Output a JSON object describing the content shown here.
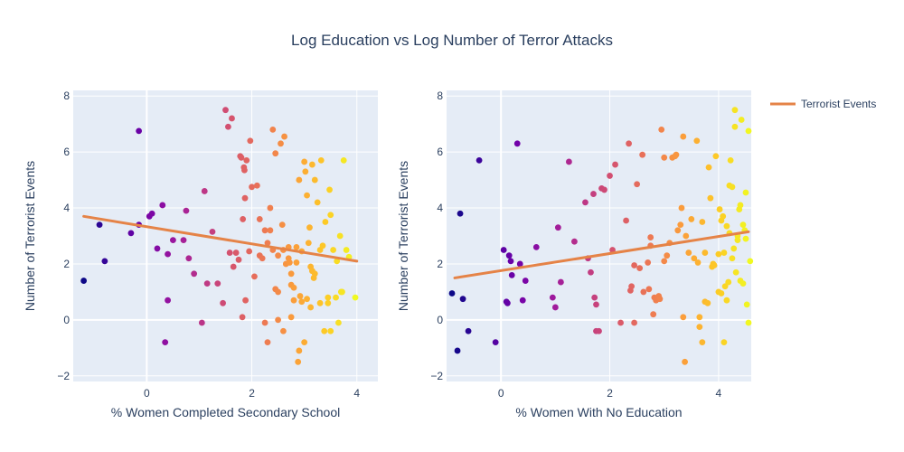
{
  "title": "Log Education vs Log Number of Terror Attacks",
  "legend": {
    "label": "Terrorist Events",
    "color": "#e58347",
    "placement": "top-right"
  },
  "colors": {
    "plot_background": "#e5ecf6",
    "grid": "#ffffff",
    "colorscale": [
      "#0d0887",
      "#46039f",
      "#7201a8",
      "#9c179e",
      "#bd3786",
      "#d8576b",
      "#ed7953",
      "#fb9f3a",
      "#fdca26",
      "#f0f921"
    ]
  },
  "chart_data": [
    {
      "type": "scatter",
      "xlabel": "% Women Completed Secondary School",
      "ylabel": "Number of Terrorist Events",
      "xlim": [
        -1.4,
        4.4
      ],
      "ylim": [
        -2.2,
        8.2
      ],
      "x_ticks": [
        0,
        2,
        4
      ],
      "y_ticks": [
        -2,
        0,
        2,
        4,
        6,
        8
      ],
      "grid": true,
      "trendline": {
        "name": "Terrorist Events",
        "x": [
          -1.2,
          4.0
        ],
        "y": [
          3.7,
          2.1
        ]
      },
      "points": [
        [
          -1.2,
          1.4
        ],
        [
          -0.9,
          3.4
        ],
        [
          -0.8,
          2.1
        ],
        [
          -0.3,
          3.1
        ],
        [
          -0.15,
          3.4
        ],
        [
          -0.15,
          6.75
        ],
        [
          0.05,
          3.7
        ],
        [
          0.1,
          3.8
        ],
        [
          0.2,
          2.55
        ],
        [
          0.3,
          4.1
        ],
        [
          0.35,
          -0.8
        ],
        [
          0.4,
          0.7
        ],
        [
          0.4,
          2.35
        ],
        [
          0.5,
          2.85
        ],
        [
          0.7,
          2.85
        ],
        [
          0.75,
          3.9
        ],
        [
          0.8,
          2.2
        ],
        [
          0.9,
          1.65
        ],
        [
          1.05,
          -0.1
        ],
        [
          1.1,
          4.6
        ],
        [
          1.15,
          1.3
        ],
        [
          1.25,
          3.15
        ],
        [
          1.35,
          1.3
        ],
        [
          1.45,
          0.6
        ],
        [
          1.5,
          7.5
        ],
        [
          1.55,
          6.9
        ],
        [
          1.58,
          2.4
        ],
        [
          1.62,
          7.2
        ],
        [
          1.65,
          1.9
        ],
        [
          1.7,
          2.4
        ],
        [
          1.75,
          2.15
        ],
        [
          1.78,
          5.85
        ],
        [
          1.8,
          5.8
        ],
        [
          1.82,
          0.1
        ],
        [
          1.83,
          3.6
        ],
        [
          1.85,
          5.45
        ],
        [
          1.86,
          5.35
        ],
        [
          1.87,
          4.35
        ],
        [
          1.88,
          0.7
        ],
        [
          1.9,
          5.7
        ],
        [
          1.95,
          2.45
        ],
        [
          1.97,
          6.4
        ],
        [
          2.0,
          4.75
        ],
        [
          2.05,
          1.55
        ],
        [
          2.1,
          4.8
        ],
        [
          2.15,
          2.3
        ],
        [
          2.15,
          3.6
        ],
        [
          2.2,
          2.2
        ],
        [
          2.25,
          3.2
        ],
        [
          2.25,
          -0.1
        ],
        [
          2.3,
          -0.8
        ],
        [
          2.3,
          2.75
        ],
        [
          2.35,
          4.0
        ],
        [
          2.35,
          3.2
        ],
        [
          2.4,
          2.5
        ],
        [
          2.4,
          6.8
        ],
        [
          2.45,
          5.95
        ],
        [
          2.45,
          1.1
        ],
        [
          2.5,
          0.0
        ],
        [
          2.5,
          1.0
        ],
        [
          2.5,
          2.3
        ],
        [
          2.55,
          6.3
        ],
        [
          2.58,
          3.4
        ],
        [
          2.6,
          2.5
        ],
        [
          2.6,
          -0.4
        ],
        [
          2.62,
          6.55
        ],
        [
          2.65,
          2.0
        ],
        [
          2.7,
          2.2
        ],
        [
          2.7,
          2.6
        ],
        [
          2.72,
          2.05
        ],
        [
          2.75,
          0.1
        ],
        [
          2.75,
          1.25
        ],
        [
          2.75,
          1.65
        ],
        [
          2.8,
          1.15
        ],
        [
          2.8,
          0.7
        ],
        [
          2.85,
          2.05
        ],
        [
          2.85,
          2.6
        ],
        [
          2.88,
          -1.5
        ],
        [
          2.9,
          -1.1
        ],
        [
          2.9,
          5.0
        ],
        [
          2.92,
          0.85
        ],
        [
          2.95,
          2.45
        ],
        [
          2.95,
          0.65
        ],
        [
          3.0,
          -0.8
        ],
        [
          3.0,
          5.65
        ],
        [
          3.02,
          5.3
        ],
        [
          3.05,
          0.75
        ],
        [
          3.05,
          4.45
        ],
        [
          3.08,
          2.75
        ],
        [
          3.1,
          3.3
        ],
        [
          3.12,
          1.9
        ],
        [
          3.12,
          0.45
        ],
        [
          3.15,
          1.75
        ],
        [
          3.15,
          5.55
        ],
        [
          3.18,
          1.5
        ],
        [
          3.2,
          1.65
        ],
        [
          3.2,
          5.0
        ],
        [
          3.25,
          4.2
        ],
        [
          3.3,
          0.6
        ],
        [
          3.3,
          2.5
        ],
        [
          3.32,
          5.7
        ],
        [
          3.35,
          2.65
        ],
        [
          3.38,
          -0.4
        ],
        [
          3.4,
          3.5
        ],
        [
          3.45,
          0.8
        ],
        [
          3.45,
          0.6
        ],
        [
          3.48,
          4.65
        ],
        [
          3.5,
          3.75
        ],
        [
          3.5,
          -0.4
        ],
        [
          3.55,
          2.5
        ],
        [
          3.6,
          0.8
        ],
        [
          3.62,
          2.1
        ],
        [
          3.65,
          -0.1
        ],
        [
          3.68,
          3.0
        ],
        [
          3.7,
          1.0
        ],
        [
          3.72,
          1.0
        ],
        [
          3.75,
          5.7
        ],
        [
          3.8,
          2.5
        ],
        [
          3.85,
          2.25
        ],
        [
          3.97,
          0.8
        ]
      ]
    },
    {
      "type": "scatter",
      "xlabel": "% Women With No Education",
      "ylabel": "Number of Terrorist Events",
      "xlim": [
        -1.0,
        4.6
      ],
      "ylim": [
        -2.2,
        8.2
      ],
      "x_ticks": [
        0,
        2,
        4
      ],
      "y_ticks": [
        -2,
        0,
        2,
        4,
        6,
        8
      ],
      "grid": true,
      "trendline": {
        "name": "Terrorist Events",
        "x": [
          -0.85,
          4.55
        ],
        "y": [
          1.5,
          3.15
        ]
      },
      "points": [
        [
          -0.9,
          0.95
        ],
        [
          -0.8,
          -1.1
        ],
        [
          -0.75,
          3.8
        ],
        [
          -0.7,
          0.75
        ],
        [
          -0.6,
          -0.4
        ],
        [
          -0.4,
          5.7
        ],
        [
          -0.1,
          -0.8
        ],
        [
          0.05,
          2.5
        ],
        [
          0.1,
          0.65
        ],
        [
          0.12,
          0.6
        ],
        [
          0.15,
          2.3
        ],
        [
          0.18,
          2.1
        ],
        [
          0.2,
          1.6
        ],
        [
          0.3,
          6.3
        ],
        [
          0.35,
          2.0
        ],
        [
          0.4,
          0.7
        ],
        [
          0.45,
          1.4
        ],
        [
          0.65,
          2.6
        ],
        [
          0.95,
          0.8
        ],
        [
          1.0,
          0.45
        ],
        [
          1.05,
          3.3
        ],
        [
          1.1,
          1.35
        ],
        [
          1.25,
          5.65
        ],
        [
          1.35,
          2.8
        ],
        [
          1.55,
          4.2
        ],
        [
          1.6,
          2.2
        ],
        [
          1.65,
          1.7
        ],
        [
          1.7,
          4.5
        ],
        [
          1.72,
          0.8
        ],
        [
          1.75,
          0.55
        ],
        [
          1.75,
          -0.4
        ],
        [
          1.8,
          -0.4
        ],
        [
          1.85,
          4.7
        ],
        [
          1.9,
          4.65
        ],
        [
          2.0,
          5.15
        ],
        [
          2.05,
          2.5
        ],
        [
          2.1,
          5.55
        ],
        [
          2.2,
          -0.1
        ],
        [
          2.3,
          3.55
        ],
        [
          2.35,
          6.3
        ],
        [
          2.38,
          1.05
        ],
        [
          2.4,
          1.2
        ],
        [
          2.45,
          -0.1
        ],
        [
          2.45,
          1.95
        ],
        [
          2.5,
          4.85
        ],
        [
          2.55,
          1.85
        ],
        [
          2.6,
          5.9
        ],
        [
          2.62,
          1.0
        ],
        [
          2.7,
          2.05
        ],
        [
          2.72,
          1.1
        ],
        [
          2.75,
          2.65
        ],
        [
          2.75,
          2.95
        ],
        [
          2.8,
          0.2
        ],
        [
          2.82,
          0.8
        ],
        [
          2.85,
          0.7
        ],
        [
          2.9,
          0.85
        ],
        [
          2.92,
          0.75
        ],
        [
          2.95,
          6.8
        ],
        [
          3.0,
          2.1
        ],
        [
          3.0,
          5.8
        ],
        [
          3.05,
          2.3
        ],
        [
          3.1,
          2.75
        ],
        [
          3.15,
          5.8
        ],
        [
          3.2,
          5.85
        ],
        [
          3.22,
          5.9
        ],
        [
          3.25,
          3.2
        ],
        [
          3.3,
          3.4
        ],
        [
          3.32,
          4.0
        ],
        [
          3.35,
          0.1
        ],
        [
          3.35,
          6.55
        ],
        [
          3.38,
          -1.5
        ],
        [
          3.4,
          3.0
        ],
        [
          3.45,
          2.4
        ],
        [
          3.5,
          3.6
        ],
        [
          3.55,
          2.2
        ],
        [
          3.6,
          6.4
        ],
        [
          3.62,
          2.05
        ],
        [
          3.65,
          0.1
        ],
        [
          3.65,
          -0.25
        ],
        [
          3.7,
          -0.8
        ],
        [
          3.7,
          3.5
        ],
        [
          3.75,
          2.4
        ],
        [
          3.75,
          0.65
        ],
        [
          3.8,
          0.6
        ],
        [
          3.82,
          5.45
        ],
        [
          3.85,
          4.35
        ],
        [
          3.88,
          1.9
        ],
        [
          3.9,
          2.0
        ],
        [
          3.92,
          1.95
        ],
        [
          3.95,
          5.85
        ],
        [
          4.0,
          1.0
        ],
        [
          4.0,
          2.35
        ],
        [
          4.02,
          3.95
        ],
        [
          4.05,
          0.95
        ],
        [
          4.05,
          3.55
        ],
        [
          4.08,
          3.7
        ],
        [
          4.1,
          -0.8
        ],
        [
          4.1,
          2.4
        ],
        [
          4.12,
          1.2
        ],
        [
          4.15,
          3.35
        ],
        [
          4.15,
          0.7
        ],
        [
          4.18,
          1.35
        ],
        [
          4.2,
          3.1
        ],
        [
          4.2,
          4.8
        ],
        [
          4.22,
          5.7
        ],
        [
          4.25,
          2.2
        ],
        [
          4.25,
          4.75
        ],
        [
          4.28,
          2.55
        ],
        [
          4.3,
          6.9
        ],
        [
          4.3,
          7.5
        ],
        [
          4.32,
          1.7
        ],
        [
          4.35,
          3.0
        ],
        [
          4.35,
          2.85
        ],
        [
          4.38,
          3.95
        ],
        [
          4.4,
          1.4
        ],
        [
          4.4,
          4.1
        ],
        [
          4.42,
          7.15
        ],
        [
          4.45,
          3.4
        ],
        [
          4.45,
          1.3
        ],
        [
          4.48,
          3.2
        ],
        [
          4.5,
          2.9
        ],
        [
          4.5,
          4.55
        ],
        [
          4.52,
          0.55
        ],
        [
          4.55,
          -0.1
        ],
        [
          4.55,
          6.75
        ],
        [
          4.58,
          2.1
        ]
      ]
    }
  ]
}
